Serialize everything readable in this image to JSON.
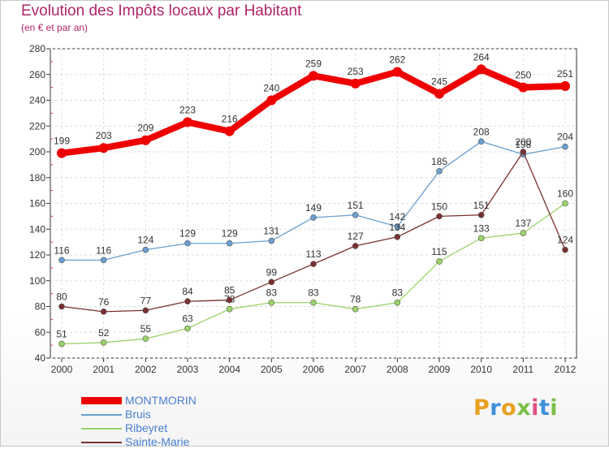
{
  "title": "Evolution des Impôts locaux par Habitant",
  "subtitle": "(en € et par an)",
  "logo_text": "Proxiti",
  "chart_data": {
    "type": "line",
    "x": [
      "2000",
      "2001",
      "2002",
      "2003",
      "2004",
      "2005",
      "2006",
      "2007",
      "2008",
      "2009",
      "2010",
      "2011",
      "2012"
    ],
    "ylim": [
      40,
      280
    ],
    "yticks": [
      40,
      60,
      80,
      100,
      120,
      140,
      160,
      180,
      200,
      220,
      240,
      260,
      280
    ],
    "grid": true,
    "legend_position": "bottom-left",
    "series": [
      {
        "name": "MONTMORIN",
        "color": "#ee0000",
        "values": [
          199,
          203,
          209,
          223,
          216,
          240,
          259,
          253,
          262,
          245,
          264,
          250,
          251
        ]
      },
      {
        "name": "Bruis",
        "color": "#6a9fd0",
        "values": [
          116,
          116,
          124,
          129,
          129,
          131,
          149,
          151,
          142,
          185,
          208,
          198,
          204
        ]
      },
      {
        "name": "Ribeyret",
        "color": "#9ad36a",
        "values": [
          51,
          52,
          55,
          63,
          78,
          83,
          83,
          78,
          83,
          115,
          133,
          137,
          160
        ]
      },
      {
        "name": "Sainte-Marie",
        "color": "#7a3030",
        "values": [
          80,
          76,
          77,
          84,
          85,
          99,
          113,
          127,
          134,
          150,
          151,
          200,
          124
        ]
      }
    ]
  }
}
